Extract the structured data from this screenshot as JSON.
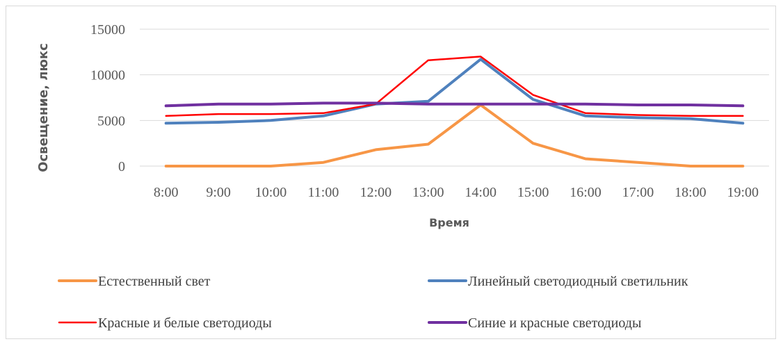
{
  "chart_data": {
    "type": "line",
    "title": "",
    "xlabel": "Время",
    "ylabel": "Освещение, люкс",
    "categories": [
      "8:00",
      "9:00",
      "10:00",
      "11:00",
      "12:00",
      "13:00",
      "14:00",
      "15:00",
      "16:00",
      "17:00",
      "18:00",
      "19:00"
    ],
    "ylim": [
      0,
      15000
    ],
    "yticks": [
      0,
      5000,
      10000,
      15000
    ],
    "ytick_labels": [
      "0",
      "5000",
      "10000",
      "15000"
    ],
    "grid": true,
    "legend_position": "bottom",
    "series": [
      {
        "name": "Естественный свет",
        "color": "#f79646",
        "width": 4,
        "values": [
          0,
          0,
          0,
          400,
          1800,
          2400,
          6700,
          2500,
          800,
          400,
          0,
          0
        ]
      },
      {
        "name": "Линейный светодиодный светильник",
        "color": "#4f81bd",
        "width": 4,
        "values": [
          4700,
          4800,
          5000,
          5500,
          6800,
          7100,
          11700,
          7300,
          5500,
          5300,
          5200,
          4700
        ]
      },
      {
        "name": "Красные и белые светодиоды",
        "color": "#ff0000",
        "width": 2.5,
        "values": [
          5500,
          5700,
          5700,
          5800,
          6800,
          11600,
          12000,
          7800,
          5800,
          5600,
          5500,
          5500
        ]
      },
      {
        "name": "Синие и красные светодиоды",
        "color": "#7030a0",
        "width": 4,
        "values": [
          6600,
          6800,
          6800,
          6900,
          6900,
          6800,
          6800,
          6800,
          6800,
          6700,
          6700,
          6600
        ]
      }
    ]
  }
}
